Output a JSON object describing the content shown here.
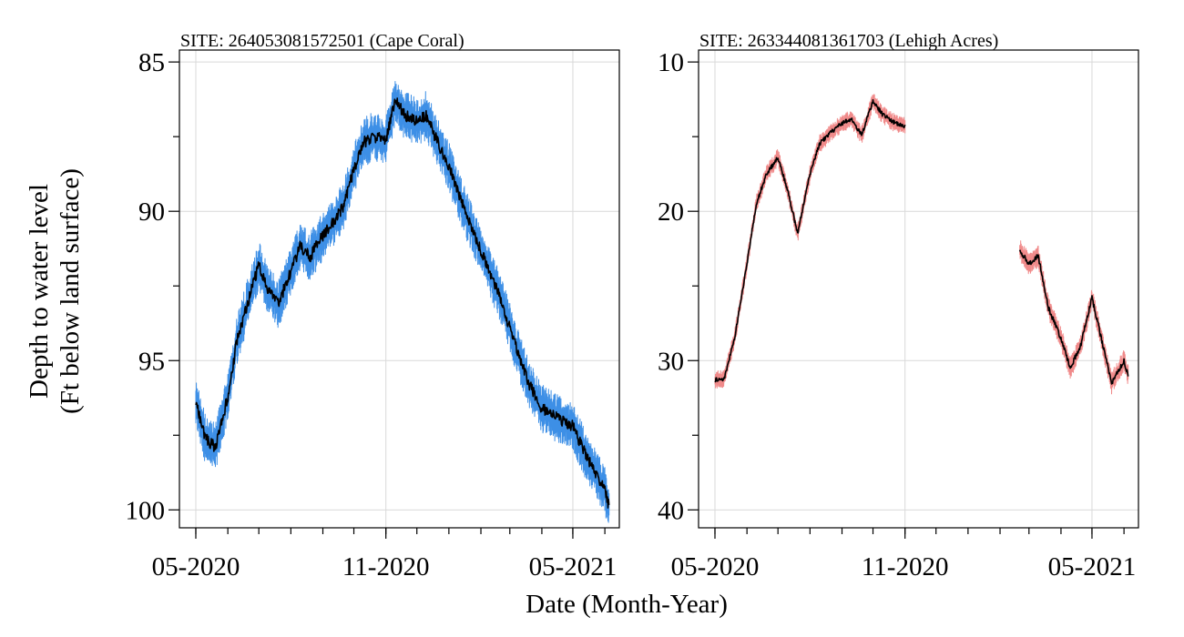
{
  "figure": {
    "xlabel": "Date (Month-Year)",
    "ylabel_line1": "Depth to water level",
    "ylabel_line2": "(Ft below land surface)"
  },
  "chart_data": [
    {
      "type": "line",
      "title": "SITE: 264053081572501 (Cape Coral)",
      "xlabel": "Date (Month-Year)",
      "ylabel": "Depth to water level (Ft below land surface)",
      "x_ticks": [
        "05-2020",
        "11-2020",
        "05-2021"
      ],
      "x_minor_ticks_monthly": true,
      "xlim": [
        "2020-05-01",
        "2021-06-15"
      ],
      "ylim": [
        100.6,
        84.6
      ],
      "y_axis_inverted": true,
      "y_ticks": [
        85,
        90,
        95,
        100
      ],
      "grid": true,
      "band_color": "#3d8fe6",
      "line_color": "#000000",
      "x": [
        "2020-05-01",
        "2020-05-10",
        "2020-05-20",
        "2020-06-01",
        "2020-06-10",
        "2020-06-20",
        "2020-07-01",
        "2020-07-10",
        "2020-07-20",
        "2020-08-01",
        "2020-08-10",
        "2020-08-20",
        "2020-09-01",
        "2020-09-10",
        "2020-09-20",
        "2020-10-01",
        "2020-10-10",
        "2020-10-20",
        "2020-11-01",
        "2020-11-10",
        "2020-11-20",
        "2020-12-01",
        "2020-12-10",
        "2020-12-20",
        "2021-01-01",
        "2021-01-10",
        "2021-01-20",
        "2021-02-01",
        "2021-02-10",
        "2021-02-20",
        "2021-03-01",
        "2021-03-10",
        "2021-03-20",
        "2021-04-01",
        "2021-04-10",
        "2021-04-20",
        "2021-05-01",
        "2021-05-10",
        "2021-05-20",
        "2021-06-01",
        "2021-06-05"
      ],
      "series": [
        {
          "values": [
            96.4,
            97.6,
            97.9,
            96.2,
            94.3,
            93.1,
            91.8,
            92.6,
            93.1,
            92.0,
            91.2,
            91.5,
            90.8,
            90.4,
            89.9,
            88.6,
            87.7,
            87.5,
            87.6,
            86.3,
            86.8,
            87.0,
            86.8,
            87.6,
            88.5,
            89.4,
            90.3,
            91.3,
            92.1,
            92.9,
            93.9,
            94.9,
            95.8,
            96.6,
            96.8,
            97.0,
            97.2,
            97.9,
            98.6,
            99.3,
            99.9
          ],
          "band_halfwidth": 0.55
        }
      ]
    },
    {
      "type": "line",
      "title": "SITE: 263344081361703 (Lehigh Acres)",
      "xlabel": "Date (Month-Year)",
      "ylabel": "Depth to water level (Ft below land surface)",
      "x_ticks": [
        "05-2020",
        "11-2020",
        "05-2021"
      ],
      "x_minor_ticks_monthly": true,
      "xlim": [
        "2020-05-01",
        "2021-06-15"
      ],
      "ylim": [
        41.2,
        9.2
      ],
      "y_axis_inverted": true,
      "y_ticks": [
        10,
        20,
        30,
        40
      ],
      "grid": true,
      "band_color": "#f08a8a",
      "line_color": "#000000",
      "series": [
        {
          "x": [
            "2020-05-01",
            "2020-05-10",
            "2020-05-20",
            "2020-06-01",
            "2020-06-10",
            "2020-06-20",
            "2020-07-01",
            "2020-07-10",
            "2020-07-20",
            "2020-08-01",
            "2020-08-10",
            "2020-08-20",
            "2020-09-01",
            "2020-09-10",
            "2020-09-20",
            "2020-10-01",
            "2020-10-10",
            "2020-10-20",
            "2020-11-01"
          ],
          "values": [
            31.3,
            31.2,
            28.5,
            23.5,
            19.5,
            17.5,
            16.4,
            18.5,
            21.5,
            17.5,
            15.5,
            14.8,
            14.1,
            13.8,
            14.9,
            12.6,
            13.5,
            14.0,
            14.3
          ],
          "band_halfwidth": 0.4
        },
        {
          "x": [
            "2021-02-20",
            "2021-03-01",
            "2021-03-10",
            "2021-03-20",
            "2021-04-01",
            "2021-04-10",
            "2021-04-20",
            "2021-05-01",
            "2021-05-10",
            "2021-05-20",
            "2021-06-01",
            "2021-06-05"
          ],
          "values": [
            22.6,
            23.5,
            23.0,
            26.5,
            28.5,
            30.5,
            29.0,
            25.8,
            28.5,
            31.5,
            30.0,
            31.0
          ],
          "band_halfwidth": 0.5
        }
      ]
    }
  ]
}
